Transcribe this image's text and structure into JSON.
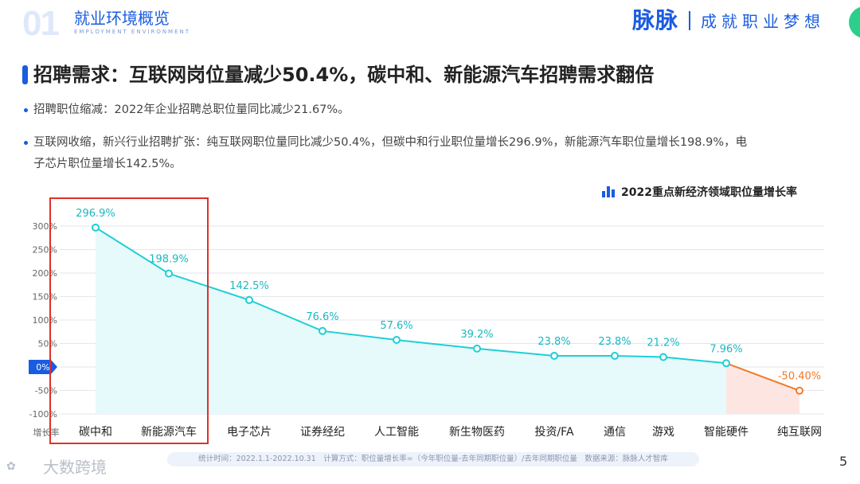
{
  "header": {
    "section_number": "01",
    "section_title": "就业环境概览",
    "section_subtitle": "EMPLOYMENT ENVIRONMENT",
    "brand": "脉脉",
    "slogan": "成就职业梦想"
  },
  "headline": "招聘需求：互联网岗位量减少50.4%，碳中和、新能源汽车招聘需求翻倍",
  "bullets": [
    {
      "text": "招聘职位缩减：2022年企业招聘总职位量同比减少21.67%。"
    },
    {
      "text": "互联网收缩，新兴行业招聘扩张：纯互联网职位量同比减少50.4%，但碳中和行业职位量增长296.9%，新能源汽车职位量增长198.9%，电"
    },
    {
      "text": "子芯片职位量增长142.5%。"
    }
  ],
  "chart_data": {
    "type": "line",
    "title": "2022重点新经济领域职位量增长率",
    "ylabel": "增长率",
    "ylim": [
      -100,
      300
    ],
    "yticks": [
      -100,
      -50,
      0,
      50,
      100,
      150,
      200,
      250,
      300
    ],
    "ytick_labels": [
      "-100%",
      "-50%",
      "0%",
      "50%",
      "100%",
      "150%",
      "200%",
      "250%",
      "300%"
    ],
    "grid": true,
    "categories": [
      "碳中和",
      "新能源汽车",
      "电子芯片",
      "证券经纪",
      "人工智能",
      "新生物医药",
      "投资/FA",
      "通信",
      "游戏",
      "智能硬件",
      "纯互联网"
    ],
    "values": [
      296.9,
      198.9,
      142.5,
      76.6,
      57.6,
      39.2,
      23.8,
      23.8,
      21.2,
      7.96,
      -50.4
    ],
    "labels": [
      "296.9%",
      "198.9%",
      "142.5%",
      "76.6%",
      "57.6%",
      "39.2%",
      "23.8%",
      "23.8%",
      "21.2%",
      "7.96%",
      "-50.40%"
    ],
    "colors": {
      "positive": "#1fcfd6",
      "negative": "#f07a2a",
      "positive_fill": "#e6fafc",
      "negative_fill": "#fde6e2",
      "zero_badge": "#1a5ce0"
    },
    "highlighted_categories": [
      "碳中和",
      "新能源汽车"
    ]
  },
  "footnote": "统计时间：2022.1.1-2022.10.31　计算方式：职位量增长率=（今年职位量-去年同期职位量）/去年同期职位量　数据来源：脉脉人才智库",
  "watermark": "大数跨境",
  "page_number": "5"
}
